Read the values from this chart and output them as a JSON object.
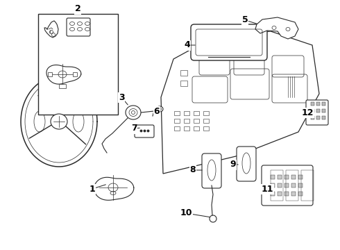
{
  "bg_color": "#ffffff",
  "line_color": "#2a2a2a",
  "label_color": "#000000",
  "fig_width": 4.9,
  "fig_height": 3.6,
  "dpi": 100,
  "label_fontsize": 9,
  "label_fontweight": "bold"
}
